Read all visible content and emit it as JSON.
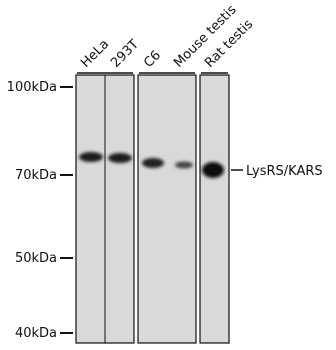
{
  "lanes": [
    "HeLa",
    "293T",
    "C6",
    "Mouse testis",
    "Rat testis"
  ],
  "markers": [
    "100kDa",
    "70kDa",
    "50kDa",
    "40kDa"
  ],
  "band_label": "LysRS/KARS"
}
